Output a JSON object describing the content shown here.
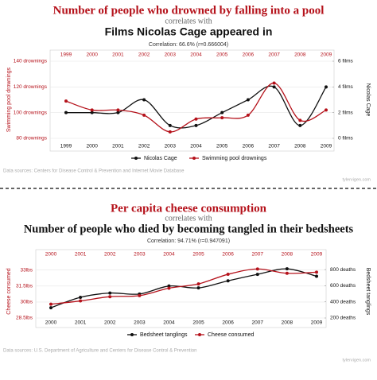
{
  "chart_data": [
    {
      "type": "line",
      "title": "Number of people who drowned by falling into a pool",
      "connector": "correlates with",
      "title2": "Films Nicolas Cage appeared in",
      "correlation": "Correlation: 66.6% (r=0.666004)",
      "categories": [
        "1999",
        "2000",
        "2001",
        "2002",
        "2003",
        "2004",
        "2005",
        "2006",
        "2007",
        "2008",
        "2009"
      ],
      "series": [
        {
          "name": "Nicolas Cage",
          "color": "#111111",
          "axis": "y2",
          "values": [
            2,
            2,
            2,
            3,
            1,
            1,
            2,
            3,
            4,
            1,
            4
          ]
        },
        {
          "name": "Swimming pool drownings",
          "color": "#b5121b",
          "axis": "y",
          "values": [
            109,
            102,
            102,
            98,
            85,
            95,
            96,
            98,
            123,
            94,
            102
          ]
        }
      ],
      "ylabel": "Swimming pool drownings",
      "y2label": "Nicolas Cage",
      "ylim": [
        80,
        140
      ],
      "yticks": [
        {
          "value": 80,
          "label": "80 drownings"
        },
        {
          "value": 100,
          "label": "100 drownings"
        },
        {
          "value": 120,
          "label": "120 drownings"
        },
        {
          "value": 140,
          "label": "140 drownings"
        }
      ],
      "y2lim": [
        0,
        6
      ],
      "y2ticks": [
        {
          "value": 0,
          "label": "0 films"
        },
        {
          "value": 2,
          "label": "2 films"
        },
        {
          "value": 4,
          "label": "4 films"
        },
        {
          "value": 6,
          "label": "6 films"
        }
      ],
      "grid": true,
      "source": "Data sources: Centers for Disease Control & Prevention and Internet Movie Database",
      "credit": "tylervigen.com"
    },
    {
      "type": "line",
      "title": "Per capita cheese consumption",
      "connector": "correlates with",
      "title2": "Number of people who died by becoming tangled in their bedsheets",
      "correlation": "Correlation: 94.71% (r=0.947091)",
      "categories": [
        "2000",
        "2001",
        "2002",
        "2003",
        "2004",
        "2005",
        "2006",
        "2007",
        "2008",
        "2009"
      ],
      "series": [
        {
          "name": "Bedsheet tanglings",
          "color": "#111111",
          "axis": "y2",
          "values": [
            327,
            456,
            509,
            497,
            596,
            573,
            661,
            741,
            809,
            717
          ]
        },
        {
          "name": "Cheese consumed",
          "color": "#b5121b",
          "axis": "y",
          "values": [
            29.8,
            30.1,
            30.5,
            30.6,
            31.3,
            31.7,
            32.6,
            33.1,
            32.7,
            32.8
          ]
        }
      ],
      "ylabel": "Cheese consumed",
      "y2label": "Bedsheet tanglings",
      "ylim": [
        28.5,
        33.5
      ],
      "yticks": [
        {
          "value": 28.5,
          "label": "28.5lbs"
        },
        {
          "value": 30,
          "label": "30lbs"
        },
        {
          "value": 31.5,
          "label": "31.5lbs"
        },
        {
          "value": 33,
          "label": "33lbs"
        }
      ],
      "y2lim": [
        200,
        860
      ],
      "y2ticks": [
        {
          "value": 200,
          "label": "200 deaths"
        },
        {
          "value": 400,
          "label": "400 deaths"
        },
        {
          "value": 600,
          "label": "600 deaths"
        },
        {
          "value": 800,
          "label": "800 deaths"
        }
      ],
      "grid": true,
      "source": "Data sources: U.S. Department of Agriculture and Centers for Disease Control & Prevention",
      "credit": "tylervigen.com"
    }
  ]
}
